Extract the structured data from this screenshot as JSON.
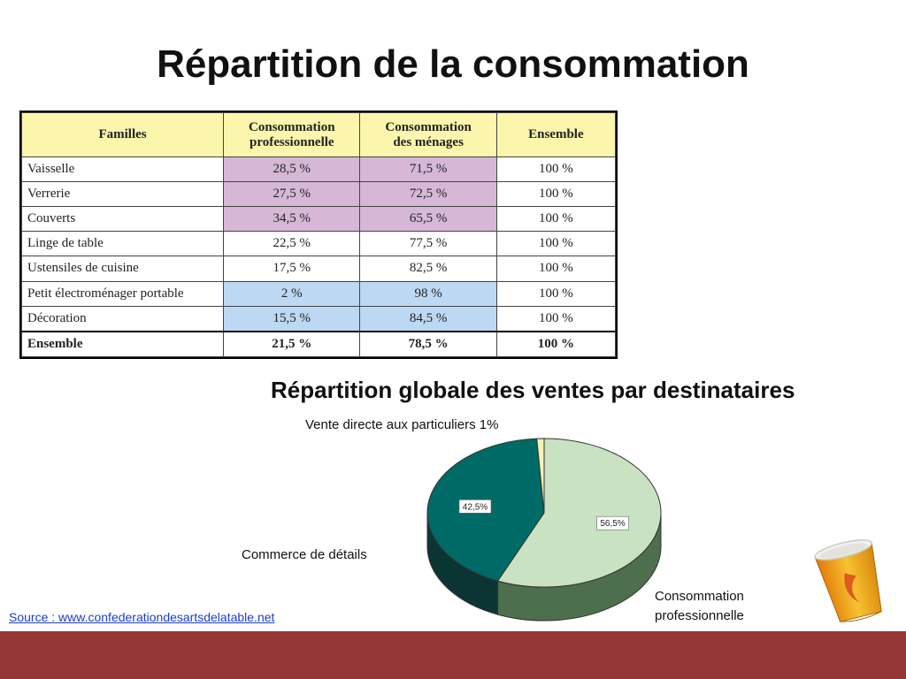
{
  "title": "Répartition de la consommation",
  "table": {
    "headers": [
      "Familles",
      "Consommation\nprofessionnelle",
      "Consommation\ndes ménages",
      "Ensemble"
    ],
    "rows": [
      {
        "famille": "Vaisselle",
        "pro": "28,5 %",
        "menages": "71,5 %",
        "ensemble": "100 %",
        "highlight": "pink"
      },
      {
        "famille": "Verrerie",
        "pro": "27,5 %",
        "menages": "72,5 %",
        "ensemble": "100 %",
        "highlight": "pink"
      },
      {
        "famille": "Couverts",
        "pro": "34,5 %",
        "menages": "65,5 %",
        "ensemble": "100 %",
        "highlight": "pink"
      },
      {
        "famille": "Linge de table",
        "pro": "22,5 %",
        "menages": "77,5 %",
        "ensemble": "100 %",
        "highlight": ""
      },
      {
        "famille": "Ustensiles de cuisine",
        "pro": "17,5 %",
        "menages": "82,5 %",
        "ensemble": "100 %",
        "highlight": ""
      },
      {
        "famille": "Petit électroménager portable",
        "pro": "2 %",
        "menages": "98 %",
        "ensemble": "100 %",
        "highlight": "blue"
      },
      {
        "famille": "Décoration",
        "pro": "15,5 %",
        "menages": "84,5 %",
        "ensemble": "100 %",
        "highlight": "blue"
      }
    ],
    "total": {
      "famille": "Ensemble",
      "pro": "21,5 %",
      "menages": "78,5 %",
      "ensemble": "100 %"
    },
    "colors": {
      "header": "#fcf6ac",
      "pink": "#d6b8d6",
      "blue": "#bdd8f2"
    }
  },
  "pie_chart": {
    "title": "Répartition globale des ventes par destinataires",
    "slices": [
      {
        "name": "Consommation professionnelle",
        "value": 56.5,
        "label": "56,5%",
        "color": "#c9e2c2",
        "side_color": "#4d6f4d"
      },
      {
        "name": "Commerce de détails",
        "value": 42.5,
        "label": "42,5%",
        "color": "#006a66",
        "side_color": "#0b3532"
      },
      {
        "name": "Vente directe aux particuliers",
        "value": 1,
        "label": "",
        "color": "#f8f1b4",
        "side_color": "#8a8450"
      }
    ],
    "external_labels": {
      "vente": "Vente directe aux particuliers 1%",
      "commerce": "Commerce de détails",
      "conso_line1": "Consommation",
      "conso_line2": "professionnelle"
    }
  },
  "source": "Source : www.confederationdesartsdelatable.net",
  "footer_color": "#953735",
  "decoration_icon": "paper-cup-icon"
}
